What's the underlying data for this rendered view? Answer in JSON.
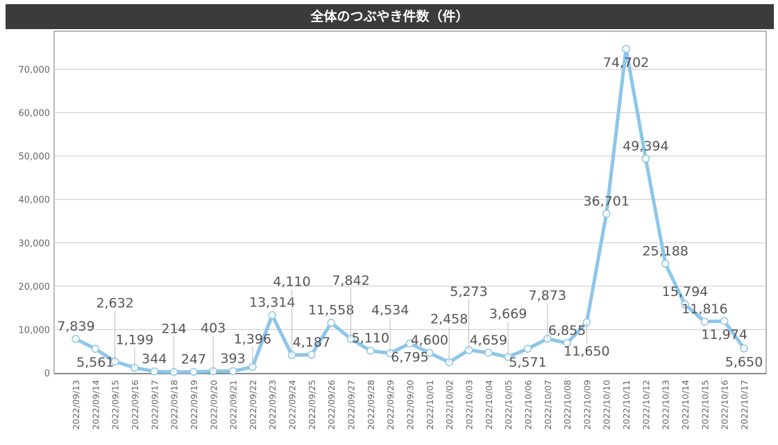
{
  "chart_data": {
    "type": "line",
    "title": "全体のつぶやき件数（件）",
    "xlabel": "",
    "ylabel": "",
    "ylim": [
      0,
      78000
    ],
    "yticks": [
      0,
      10000,
      20000,
      30000,
      40000,
      50000,
      60000,
      70000
    ],
    "ytick_labels": [
      "0",
      "10,000",
      "20,000",
      "30,000",
      "40,000",
      "50,000",
      "60,000",
      "70,000"
    ],
    "grid": true,
    "line_color": "#8cc6ea",
    "categories": [
      "2022/09/13",
      "2022/09/14",
      "2022/09/15",
      "2022/09/16",
      "2022/09/17",
      "2022/09/18",
      "2022/09/19",
      "2022/09/20",
      "2022/09/21",
      "2022/09/22",
      "2022/09/23",
      "2022/09/24",
      "2022/09/25",
      "2022/09/26",
      "2022/09/27",
      "2022/09/28",
      "2022/09/29",
      "2022/09/30",
      "2022/10/01",
      "2022/10/02",
      "2022/10/03",
      "2022/10/04",
      "2022/10/05",
      "2022/10/06",
      "2022/10/07",
      "2022/10/08",
      "2022/10/09",
      "2022/10/10",
      "2022/10/11",
      "2022/10/12",
      "2022/10/13",
      "2022/10/14",
      "2022/10/15",
      "2022/10/16",
      "2022/10/17"
    ],
    "values": [
      7839,
      5561,
      2632,
      1199,
      344,
      214,
      247,
      403,
      393,
      1396,
      13314,
      4110,
      4187,
      11558,
      7842,
      5110,
      4534,
      6795,
      4600,
      2458,
      5273,
      4659,
      3669,
      5571,
      7873,
      6855,
      11650,
      36701,
      74702,
      49394,
      25188,
      15794,
      11816,
      11974,
      5650
    ],
    "data_labels": [
      "7,839",
      "5,561",
      "2,632",
      "1,199",
      "344",
      "214",
      "247",
      "403",
      "393",
      "1,396",
      "13,314",
      "4,110",
      "4,187",
      "11,558",
      "7,842",
      "5,110",
      "4,534",
      "6,795",
      "4,600",
      "2,458",
      "5,273",
      "4,659",
      "3,669",
      "5,571",
      "7,873",
      "6,855",
      "11,650",
      "36,701",
      "74,702",
      "49,394",
      "25,188",
      "15,794",
      "11,816",
      "11,974",
      "5,650"
    ]
  }
}
